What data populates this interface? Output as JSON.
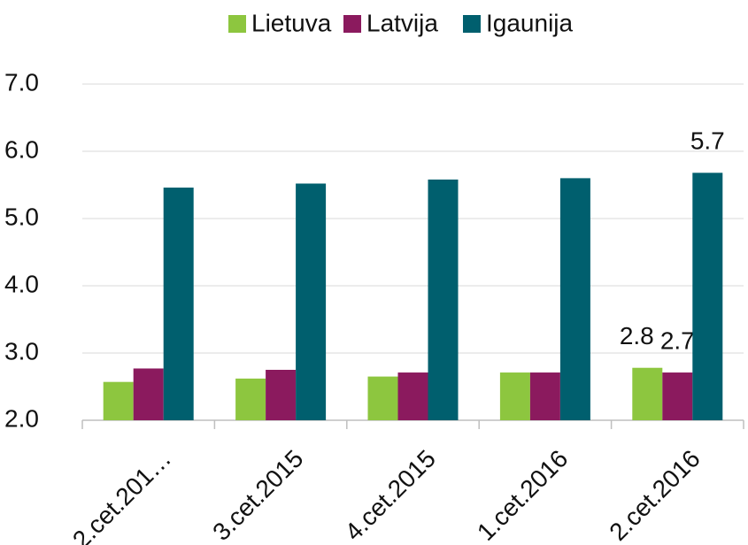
{
  "chart_data": {
    "type": "bar",
    "categories": [
      "2.cet.201…",
      "3.cet.2015",
      "4.cet.2015",
      "1.cet.2016",
      "2.cet.2016"
    ],
    "series": [
      {
        "name": "Lietuva",
        "color": "#8dc63f",
        "values": [
          2.57,
          2.62,
          2.65,
          2.71,
          2.78
        ],
        "value_labels": [
          null,
          null,
          null,
          null,
          "2.8"
        ]
      },
      {
        "name": "Latvija",
        "color": "#8b1a5e",
        "values": [
          2.77,
          2.75,
          2.71,
          2.71,
          2.71
        ],
        "value_labels": [
          null,
          null,
          null,
          null,
          "2.7"
        ]
      },
      {
        "name": "Igaunija",
        "color": "#005f6e",
        "values": [
          5.46,
          5.52,
          5.58,
          5.6,
          5.68
        ],
        "value_labels": [
          null,
          null,
          null,
          null,
          "5.7"
        ]
      }
    ],
    "ylim": [
      2,
      7
    ],
    "yticks": [
      {
        "value": 2,
        "label": "2.0"
      },
      {
        "value": 3,
        "label": "3.0"
      },
      {
        "value": 4,
        "label": "4.0"
      },
      {
        "value": 5,
        "label": "5.0"
      },
      {
        "value": 6,
        "label": "6.0"
      },
      {
        "value": 7,
        "label": "7.0"
      }
    ],
    "grid": true,
    "legend": "top"
  }
}
